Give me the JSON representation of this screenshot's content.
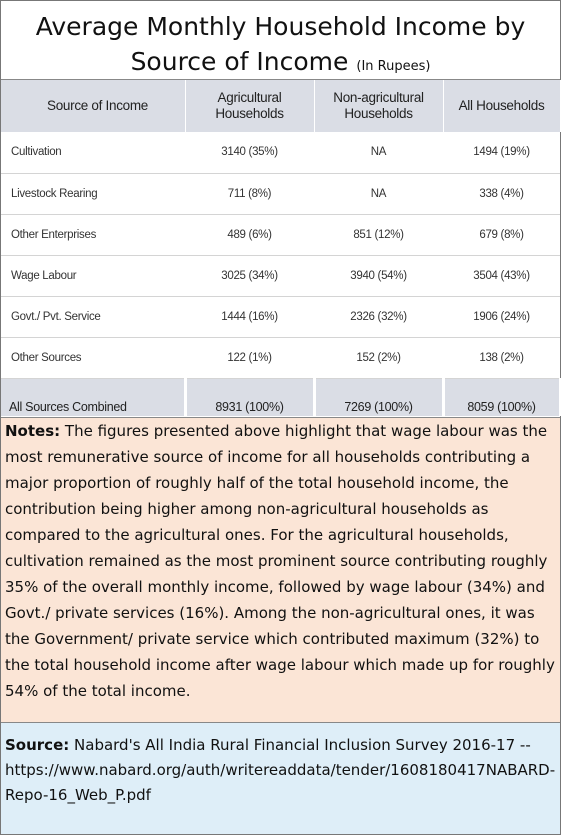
{
  "title": {
    "main": "Average Monthly Household Income by Source of Income",
    "subtitle": "(In Rupees)"
  },
  "chart_data": {
    "type": "table",
    "title": "Average Monthly Household Income by Source of Income",
    "subtitle": "(In Rupees)",
    "columns": [
      "Source of Income",
      "Agricultural Households",
      "Non-agricultural Households",
      "All Households"
    ],
    "rows": [
      {
        "source": "Cultivation",
        "agricultural": "3140 (35%)",
        "non_agricultural": "NA",
        "all": "1494 (19%)"
      },
      {
        "source": "Livestock Rearing",
        "agricultural": "711 (8%)",
        "non_agricultural": "NA",
        "all": "338 (4%)"
      },
      {
        "source": "Other Enterprises",
        "agricultural": "489 (6%)",
        "non_agricultural": "851 (12%)",
        "all": "679 (8%)"
      },
      {
        "source": "Wage Labour",
        "agricultural": "3025 (34%)",
        "non_agricultural": "3940 (54%)",
        "all": "3504 (43%)"
      },
      {
        "source": "Govt./ Pvt. Service",
        "agricultural": "1444 (16%)",
        "non_agricultural": "2326 (32%)",
        "all": "1906 (24%)"
      },
      {
        "source": "Other Sources",
        "agricultural": "122 (1%)",
        "non_agricultural": "152 (2%)",
        "all": "138 (2%)"
      }
    ],
    "total": {
      "source": "All Sources Combined",
      "agricultural": "8931 (100%)",
      "non_agricultural": "7269 (100%)",
      "all": "8059 (100%)"
    }
  },
  "notes": {
    "label": "Notes:",
    "text": "The figures presented above highlight that wage labour was the most remunerative source of income for all households contributing a major proportion of roughly half of the total household income, the contribution being higher among non-agricultural households as compared to the agricultural ones. For the agricultural households, cultivation remained as the most prominent source contributing roughly 35% of the overall monthly income, followed by wage labour (34%) and Govt./ private services (16%). Among the non-agricultural ones, it was the Government/ private service which contributed maximum (32%) to the total household income after wage labour which made up for roughly 54% of the total income."
  },
  "source": {
    "label": "Source:",
    "text": "Nabard's All India Rural Financial Inclusion Survey 2016-17 -- https://www.nabard.org/auth/writereaddata/tender/1608180417NABARD-Repo-16_Web_P.pdf"
  },
  "colors": {
    "header_bg": "#dadde5",
    "notes_bg": "#fbe5d6",
    "source_bg": "#deeef8"
  }
}
